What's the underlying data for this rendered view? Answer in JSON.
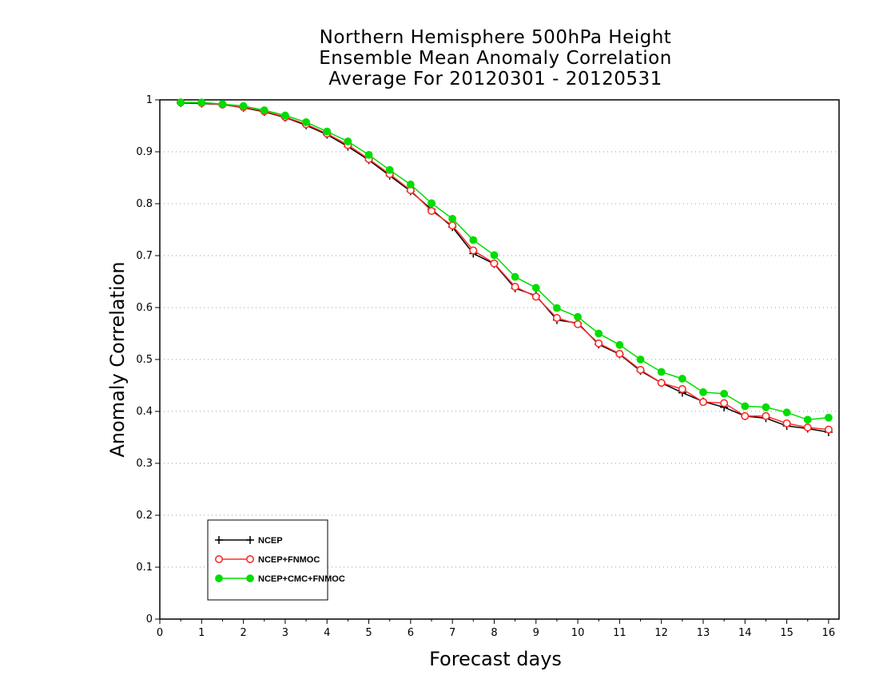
{
  "chart_data": {
    "type": "line",
    "title_lines": [
      "Northern Hemisphere 500hPa Height",
      "Ensemble Mean Anomaly Correlation",
      "Average For 20120301 - 20120531"
    ],
    "xlabel": "Forecast days",
    "ylabel": "Anomaly Correlation",
    "xlim": [
      0,
      16.25
    ],
    "ylim": [
      0,
      1
    ],
    "x_ticks": [
      "0",
      "1",
      "2",
      "3",
      "4",
      "5",
      "6",
      "7",
      "8",
      "9",
      "10",
      "11",
      "12",
      "13",
      "14",
      "15",
      "16"
    ],
    "y_ticks": [
      "0",
      "0.1",
      "0.2",
      "0.3",
      "0.4",
      "0.5",
      "0.6",
      "0.7",
      "0.8",
      "0.9",
      "1"
    ],
    "grid": true,
    "legend_position": "bottom-left",
    "x": [
      0.5,
      1,
      1.5,
      2,
      2.5,
      3,
      3.5,
      4,
      4.5,
      5,
      5.5,
      6,
      6.5,
      7,
      7.5,
      8,
      8.5,
      9,
      9.5,
      10,
      10.5,
      11,
      11.5,
      12,
      12.5,
      13,
      13.5,
      14,
      14.5,
      15,
      15.5,
      16
    ],
    "series": [
      {
        "name": "NCEP",
        "color": "#000000",
        "marker": "plus",
        "values": [
          0.994,
          0.993,
          0.991,
          0.985,
          0.977,
          0.966,
          0.951,
          0.933,
          0.91,
          0.884,
          0.854,
          0.824,
          0.789,
          0.755,
          0.704,
          0.684,
          0.637,
          0.623,
          0.576,
          0.57,
          0.529,
          0.51,
          0.478,
          0.455,
          0.436,
          0.419,
          0.408,
          0.391,
          0.387,
          0.372,
          0.367,
          0.36
        ]
      },
      {
        "name": "NCEP+FNMOC",
        "color": "#ff2a2a",
        "marker": "open-circle",
        "values": [
          0.995,
          0.994,
          0.991,
          0.986,
          0.978,
          0.967,
          0.953,
          0.935,
          0.913,
          0.886,
          0.857,
          0.826,
          0.786,
          0.758,
          0.71,
          0.685,
          0.64,
          0.621,
          0.58,
          0.568,
          0.531,
          0.511,
          0.48,
          0.455,
          0.443,
          0.418,
          0.416,
          0.391,
          0.391,
          0.377,
          0.369,
          0.365
        ]
      },
      {
        "name": "NCEP+CMC+FNMOC",
        "color": "#00dd00",
        "marker": "filled-circle",
        "values": [
          0.995,
          0.995,
          0.992,
          0.988,
          0.98,
          0.97,
          0.957,
          0.939,
          0.92,
          0.894,
          0.865,
          0.837,
          0.801,
          0.771,
          0.73,
          0.701,
          0.659,
          0.638,
          0.599,
          0.582,
          0.55,
          0.528,
          0.5,
          0.476,
          0.463,
          0.437,
          0.434,
          0.41,
          0.408,
          0.398,
          0.384,
          0.388
        ]
      }
    ]
  }
}
